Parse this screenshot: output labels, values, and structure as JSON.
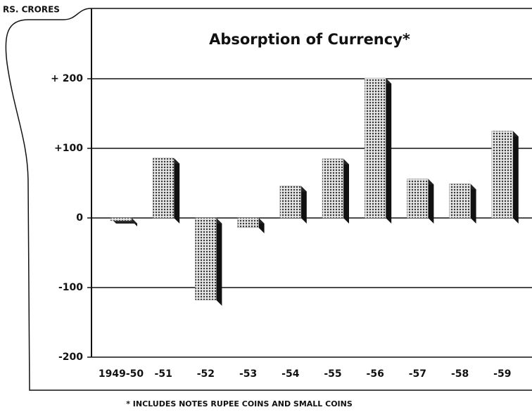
{
  "chart_data": {
    "type": "bar",
    "title": "Absorption of Currency*",
    "y_axis_label": "RS. CRORES",
    "footnote": "* INCLUDES NOTES RUPEE COINS AND SMALL COINS",
    "categories": [
      "1949-50",
      "-51",
      "-52",
      "-53",
      "-54",
      "-55",
      "-56",
      "-57",
      "-58",
      "-59"
    ],
    "values": [
      -4,
      86,
      -118,
      -14,
      46,
      85,
      201,
      56,
      49,
      125
    ],
    "color": "#9a9a9a",
    "ylim": [
      -200,
      200
    ],
    "yticks": [
      {
        "value": 200,
        "label": "+ 200"
      },
      {
        "value": 100,
        "label": "+100"
      },
      0,
      -100,
      -200
    ],
    "grid": true
  }
}
